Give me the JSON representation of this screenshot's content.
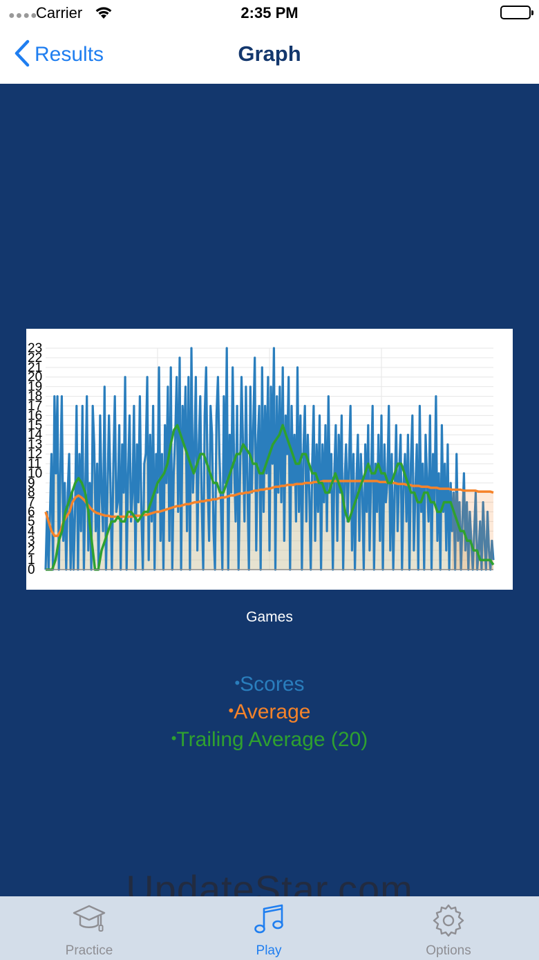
{
  "status_bar": {
    "carrier": "Carrier",
    "time": "2:35 PM",
    "battery_level": 1.0
  },
  "nav": {
    "back_label": "Results",
    "title": "Graph"
  },
  "colors": {
    "background": "#13376d",
    "scores": "#2a7ebd",
    "average": "#f5832a",
    "trailing": "#2fa12f",
    "tab_active": "#1f7ef0",
    "tab_inactive": "#8e8e93"
  },
  "chart_data": {
    "type": "line",
    "ylim": [
      0,
      23
    ],
    "y_ticks": [
      "0",
      "1",
      "2",
      "3",
      "4",
      "5",
      "6",
      "7",
      "8",
      "9",
      "10",
      "11",
      "12",
      "13",
      "14",
      "15",
      "16",
      "17",
      "18",
      "19",
      "20",
      "21",
      "22",
      "23"
    ],
    "xlabel": "Games",
    "x": {
      "count": 300
    },
    "series": [
      {
        "name": "Scores",
        "values": [
          0,
          6,
          0,
          6,
          12,
          0,
          18,
          10,
          18,
          0,
          10,
          18,
          3,
          9,
          0,
          8,
          12,
          0,
          8,
          0,
          6,
          17,
          0,
          12,
          4,
          17,
          0,
          9,
          18,
          2,
          9,
          0,
          17,
          13,
          4,
          11,
          0,
          16,
          8,
          4,
          19,
          0,
          8,
          16,
          9,
          0,
          11,
          18,
          6,
          7,
          15,
          0,
          13,
          8,
          20,
          0,
          10,
          16,
          5,
          8,
          17,
          0,
          13,
          7,
          18,
          6,
          0,
          11,
          12,
          20,
          1,
          14,
          5,
          17,
          0,
          12,
          8,
          21,
          3,
          12,
          0,
          15,
          9,
          19,
          3,
          21,
          0,
          10,
          14,
          20,
          6,
          22,
          0,
          17,
          13,
          19,
          4,
          20,
          0,
          23,
          8,
          12,
          20,
          2,
          13,
          18,
          7,
          0,
          16,
          21,
          9,
          3,
          17,
          14,
          4,
          0,
          16,
          20,
          12,
          7,
          0,
          18,
          9,
          23,
          0,
          14,
          8,
          21,
          11,
          5,
          17,
          0,
          10,
          20,
          13,
          5,
          19,
          9,
          0,
          19,
          8,
          15,
          22,
          2,
          13,
          17,
          0,
          21,
          6,
          17,
          10,
          20,
          2,
          19,
          11,
          23,
          0,
          18,
          8,
          19,
          7,
          21,
          3,
          16,
          12,
          20,
          0,
          17,
          9,
          14,
          5,
          21,
          6,
          16,
          0,
          12,
          17,
          5,
          14,
          8,
          0,
          11,
          17,
          3,
          13,
          6,
          16,
          0,
          13,
          7,
          15,
          4,
          18,
          8,
          12,
          0,
          10,
          15,
          3,
          14,
          8,
          16,
          0,
          9,
          13,
          5,
          11,
          17,
          2,
          12,
          0,
          9,
          14,
          3,
          12,
          8,
          0,
          13,
          6,
          15,
          2,
          10,
          17,
          0,
          11,
          6,
          14,
          3,
          16,
          0,
          13,
          7,
          9,
          17,
          2,
          12,
          0,
          8,
          15,
          4,
          10,
          14,
          0,
          9,
          12,
          5,
          14,
          0,
          11,
          16,
          2,
          8,
          13,
          0,
          17,
          6,
          11,
          0,
          14,
          9,
          5,
          16,
          0,
          12,
          7,
          18,
          3,
          10,
          0,
          15,
          6,
          11,
          2,
          13,
          0,
          9,
          4,
          8,
          0,
          12,
          3,
          7,
          0,
          5,
          10,
          2,
          7,
          0,
          6,
          3,
          0,
          4,
          8,
          0,
          2,
          5,
          0,
          7,
          3,
          0,
          6,
          2,
          0,
          3,
          1
        ],
        "dash": false
      },
      {
        "name": "Average",
        "values": [
          6,
          5,
          4,
          3.5,
          3.5,
          4,
          5,
          5.5,
          6,
          7,
          7.5,
          7.7,
          7.5,
          7.2,
          6.8,
          6.4,
          6.1,
          5.9,
          5.8,
          5.7,
          5.6,
          5.6,
          5.5,
          5.5,
          5.5,
          5.5,
          5.5,
          5.5,
          5.5,
          5.5,
          5.6,
          5.6,
          5.6,
          5.7,
          5.7,
          5.8,
          5.9,
          6,
          6,
          6.1,
          6.2,
          6.3,
          6.4,
          6.5,
          6.6,
          6.6,
          6.7,
          6.8,
          6.8,
          6.9,
          7,
          7,
          7.1,
          7.1,
          7.2,
          7.2,
          7.3,
          7.3,
          7.4,
          7.5,
          7.5,
          7.6,
          7.7,
          7.7,
          7.8,
          7.9,
          7.9,
          8,
          8,
          8.1,
          8.2,
          8.2,
          8.3,
          8.3,
          8.4,
          8.4,
          8.5,
          8.6,
          8.6,
          8.7,
          8.7,
          8.8,
          8.8,
          8.8,
          8.9,
          8.9,
          8.9,
          9,
          9,
          9,
          9.1,
          9.1,
          9.1,
          9.2,
          9.2,
          9.2,
          9.2,
          9.2,
          9.2,
          9.2,
          9.2,
          9.2,
          9.2,
          9.2,
          9.2,
          9.2,
          9.2,
          9.2,
          9.2,
          9.2,
          9.2,
          9.2,
          9.1,
          9.1,
          9.1,
          9,
          9,
          9,
          8.9,
          8.9,
          8.9,
          8.8,
          8.8,
          8.7,
          8.7,
          8.7,
          8.6,
          8.6,
          8.6,
          8.5,
          8.5,
          8.5,
          8.4,
          8.4,
          8.4,
          8.4,
          8.3,
          8.3,
          8.3,
          8.3,
          8.2,
          8.2,
          8.2,
          8.2,
          8.2,
          8.1,
          8.1,
          8.1,
          8.1,
          8.1,
          8.0
        ],
        "dash": false
      },
      {
        "name": "Trailing Average (20)",
        "values": [
          0,
          0,
          0,
          1,
          3,
          4,
          6,
          7,
          8,
          9,
          9.5,
          9,
          8,
          6,
          3,
          0,
          0,
          2,
          3,
          4,
          5,
          5,
          5.5,
          5,
          5,
          6,
          6,
          5.5,
          5,
          5.5,
          6,
          6,
          7,
          8,
          9,
          9.5,
          10,
          11,
          13,
          14.5,
          15,
          14,
          13,
          12,
          11,
          10,
          11,
          12,
          12,
          11,
          10,
          9,
          9,
          8,
          8,
          9,
          10,
          11,
          12,
          12,
          13,
          12.5,
          12,
          11,
          11,
          10,
          10,
          11,
          12,
          13,
          13.5,
          14,
          15,
          14,
          13,
          12,
          11,
          11,
          12,
          12,
          11,
          10,
          10,
          9,
          9,
          8,
          8,
          9,
          10,
          9,
          8,
          6,
          5,
          6,
          7,
          8,
          9,
          10,
          11,
          10,
          10,
          11,
          10,
          10,
          9,
          9,
          10,
          11,
          11,
          10,
          9,
          8,
          8,
          7,
          7,
          8,
          8,
          7,
          7,
          6,
          6,
          7,
          7,
          7,
          6,
          5,
          4,
          4,
          3,
          3,
          2,
          2,
          1,
          1,
          1,
          1,
          0.5
        ],
        "dash": false
      }
    ],
    "grid": true,
    "legend": "below"
  },
  "legend": [
    {
      "label": "Scores",
      "color": "#2a7ebd"
    },
    {
      "label": "Average",
      "color": "#f5832a"
    },
    {
      "label": "Trailing Average (20)",
      "color": "#2fa12f"
    }
  ],
  "watermark": "UpdateStar.com",
  "tabs": [
    {
      "label": "Practice",
      "icon": "graduation-cap-icon",
      "active": false
    },
    {
      "label": "Play",
      "icon": "music-notes-icon",
      "active": true
    },
    {
      "label": "Options",
      "icon": "gear-icon",
      "active": false
    }
  ]
}
